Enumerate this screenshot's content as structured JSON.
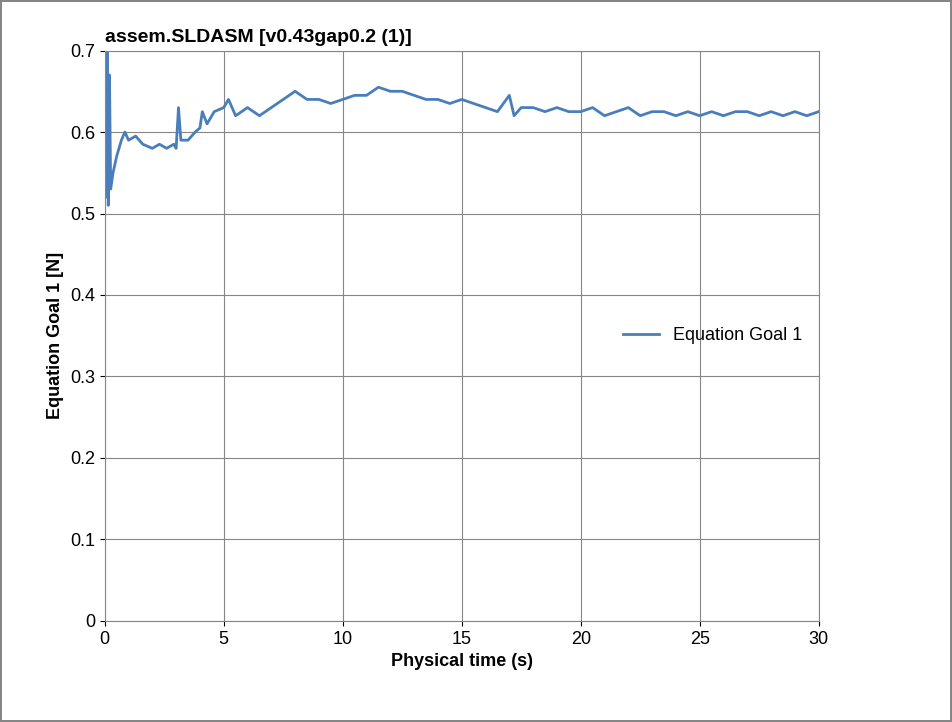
{
  "chart_data": {
    "type": "line",
    "title": "assem.SLDASM [v0.43gap0.2 (1)]",
    "x_label": "Physical time (s)",
    "y_label": "Equation Goal 1 [N]",
    "x": [
      0.0,
      0.05,
      0.1,
      0.15,
      0.2,
      0.25,
      0.35,
      0.5,
      0.7,
      0.85,
      1.0,
      1.3,
      1.6,
      2.0,
      2.3,
      2.6,
      2.9,
      3.0,
      3.1,
      3.2,
      3.5,
      3.8,
      4.0,
      4.1,
      4.3,
      4.6,
      5.0,
      5.2,
      5.5,
      6.0,
      6.5,
      7.0,
      7.5,
      8.0,
      8.5,
      9.0,
      9.5,
      10.0,
      10.5,
      11.0,
      11.5,
      12.0,
      12.5,
      13.0,
      13.5,
      14.0,
      14.5,
      15.0,
      15.5,
      16.0,
      16.5,
      17.0,
      17.2,
      17.5,
      18.0,
      18.5,
      19.0,
      19.5,
      20.0,
      20.5,
      21.0,
      21.5,
      22.0,
      22.5,
      23.0,
      23.5,
      24.0,
      24.5,
      25.0,
      25.5,
      26.0,
      26.5,
      27.0,
      27.5,
      28.0,
      28.5,
      29.0,
      29.5,
      30.0
    ],
    "series": [
      {
        "name": "Equation Goal 1",
        "color": "#4a7ebb",
        "values": [
          0.7,
          0.52,
          0.7,
          0.51,
          0.67,
          0.53,
          0.55,
          0.57,
          0.59,
          0.6,
          0.59,
          0.595,
          0.585,
          0.58,
          0.585,
          0.58,
          0.585,
          0.58,
          0.63,
          0.59,
          0.59,
          0.6,
          0.605,
          0.625,
          0.61,
          0.625,
          0.63,
          0.64,
          0.62,
          0.63,
          0.62,
          0.63,
          0.64,
          0.65,
          0.64,
          0.64,
          0.635,
          0.64,
          0.645,
          0.645,
          0.655,
          0.65,
          0.65,
          0.645,
          0.64,
          0.64,
          0.635,
          0.64,
          0.635,
          0.63,
          0.625,
          0.645,
          0.62,
          0.63,
          0.63,
          0.625,
          0.63,
          0.625,
          0.625,
          0.63,
          0.62,
          0.625,
          0.63,
          0.62,
          0.625,
          0.625,
          0.62,
          0.625,
          0.62,
          0.625,
          0.62,
          0.625,
          0.625,
          0.62,
          0.625,
          0.62,
          0.625,
          0.62,
          0.625
        ]
      }
    ],
    "xlim": [
      0,
      30
    ],
    "xticks": [
      0,
      5,
      10,
      15,
      20,
      25,
      30
    ],
    "ylim": [
      0,
      0.7
    ],
    "yticks": [
      0,
      0.1,
      0.2,
      0.3,
      0.4,
      0.5,
      0.6,
      0.7
    ],
    "grid": true,
    "legend": "center right"
  }
}
